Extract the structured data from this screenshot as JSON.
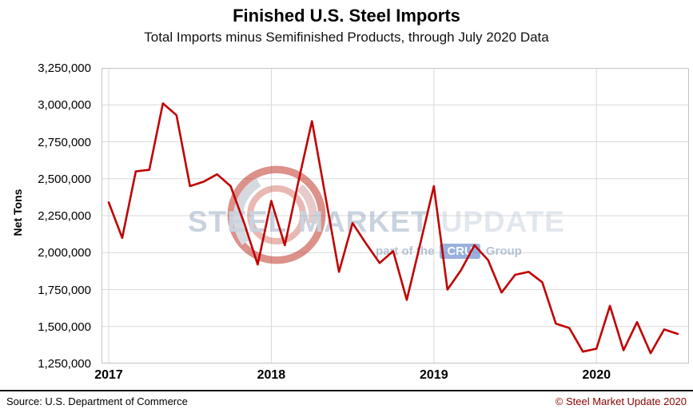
{
  "title": "Finished U.S. Steel Imports",
  "subtitle": "Total Imports minus Semifinished Products, through July 2020 Data",
  "footer": {
    "source": "Source: U.S. Department of Commerce",
    "copyright": "© Steel Market Update 2020"
  },
  "watermark": {
    "word1": "STEEL",
    "word2": "MARKET",
    "word3": "UPDATE",
    "tagline_prefix": "part of the",
    "tagline_box": "CRU",
    "tagline_suffix": "Group"
  },
  "chart_data": {
    "type": "line",
    "title": "Finished U.S. Steel Imports",
    "subtitle": "Total Imports minus Semifinished Products, through July 2020 Data",
    "xlabel": "",
    "ylabel": "Net Tons",
    "ylim": [
      1250000,
      3250000
    ],
    "ytick_step": 250000,
    "ytick_labels": [
      "1,250,000",
      "1,500,000",
      "1,750,000",
      "2,000,000",
      "2,250,000",
      "2,500,000",
      "2,750,000",
      "3,000,000",
      "3,250,000"
    ],
    "xtick_labels": [
      "2017",
      "2018",
      "2019",
      "2020"
    ],
    "x_unit": "month",
    "x_range": [
      "2017-01",
      "2020-07"
    ],
    "grid": true,
    "legend": false,
    "series": [
      {
        "name": "Finished U.S. Steel Imports (Net Tons, monthly)",
        "color": "#C00000",
        "values": [
          2340000,
          2100000,
          2550000,
          2560000,
          3010000,
          2930000,
          2450000,
          2480000,
          2530000,
          2450000,
          2200000,
          1920000,
          2350000,
          2050000,
          2480000,
          2890000,
          2380000,
          1870000,
          2200000,
          2060000,
          1930000,
          2010000,
          1680000,
          2060000,
          2450000,
          1750000,
          1880000,
          2050000,
          1950000,
          1730000,
          1850000,
          1870000,
          1800000,
          1520000,
          1490000,
          1330000,
          1350000,
          1640000,
          1340000,
          1530000,
          1320000,
          1480000,
          1450000
        ]
      }
    ]
  }
}
